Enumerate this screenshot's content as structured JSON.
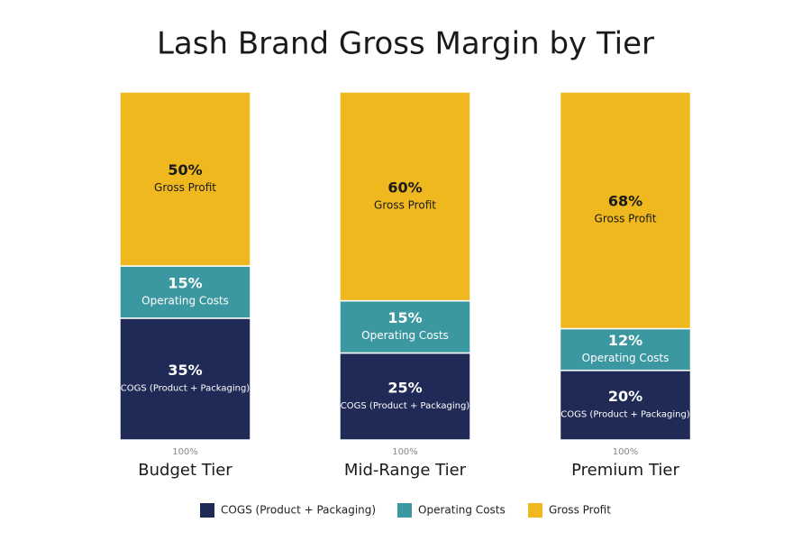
{
  "chart_data": {
    "type": "stacked_bar",
    "title": "Lash Brand Gross Margin by Tier",
    "categories": [
      "Budget Tier",
      "Mid-Range Tier",
      "Premium Tier"
    ],
    "total_labels": [
      "100%",
      "100%",
      "100%"
    ],
    "series": [
      {
        "name": "COGS (Product + Packaging)",
        "color": "#1f2b56",
        "values": [
          35,
          25,
          20
        ],
        "value_labels": [
          "35%",
          "25%",
          "20%"
        ]
      },
      {
        "name": "Operating Costs",
        "color": "#3c98a0",
        "values": [
          15,
          15,
          12
        ],
        "value_labels": [
          "15%",
          "15%",
          "12%"
        ]
      },
      {
        "name": "Gross Profit",
        "color": "#efb81e",
        "values": [
          50,
          60,
          68
        ],
        "value_labels": [
          "50%",
          "60%",
          "68%"
        ]
      }
    ],
    "ylim": [
      0,
      100
    ]
  }
}
